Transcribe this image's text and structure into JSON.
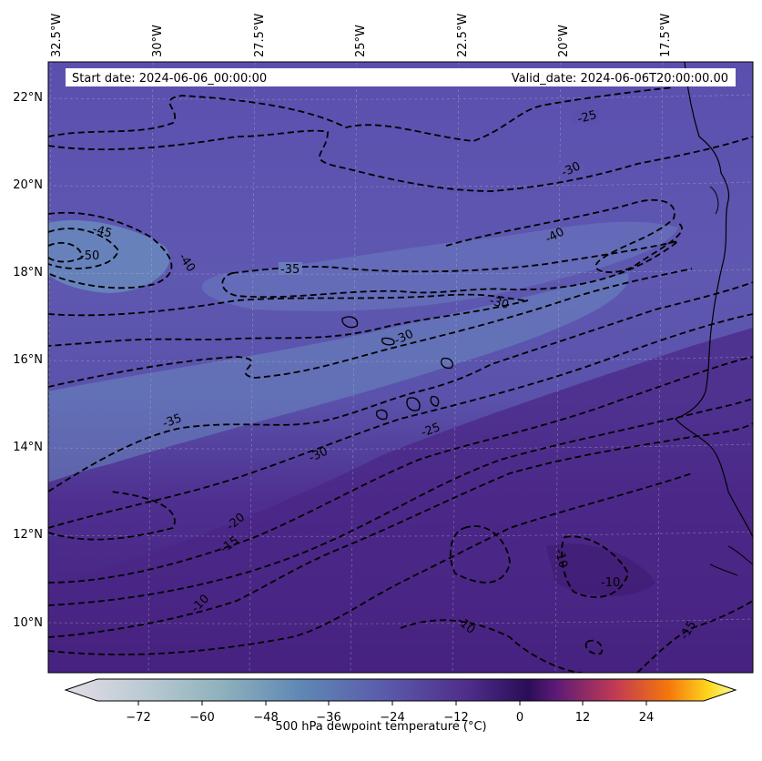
{
  "header": {
    "start_date": "Start date: 2024-06-06_00:00:00",
    "valid_date": "Valid_date: 2024-06-06T20:00:00.00"
  },
  "map": {
    "variable": "500 hPa dewpoint temperature",
    "lon_labels": [
      "32.5°W",
      "30°W",
      "27.5°W",
      "25°W",
      "22.5°W",
      "20°W",
      "17.5°W"
    ],
    "lat_labels": [
      "22°N",
      "20°N",
      "18°N",
      "16°N",
      "14°N",
      "12°N",
      "10°N"
    ],
    "contour_labels": [
      "-25",
      "-30",
      "-40",
      "-45",
      "-50",
      "-40",
      "-35",
      "-30",
      "-30",
      "-35",
      "-25",
      "-30",
      "-20",
      "-15",
      "-10",
      "-10",
      "-10",
      "-10",
      "-15"
    ],
    "contour_linestyle": "dashed",
    "contour_color": "#000000",
    "coastline_color": "#000000"
  },
  "colorbar": {
    "title": "500 hPa dewpoint temperature ($^\\circ$C)",
    "title_display": "500 hPa dewpoint temperature (°C)",
    "ticks": [
      "−72",
      "−60",
      "−48",
      "−36",
      "−24",
      "−12",
      "0",
      "12",
      "24"
    ],
    "range": [
      -84,
      36
    ],
    "extend": "both",
    "colormap_stops": [
      "#e4dde6",
      "#8fb2bc",
      "#5f88b5",
      "#5a59ab",
      "#4f2d8a",
      "#2a0d57",
      "#5a1a76",
      "#c13a55",
      "#f4770c",
      "#ffd61f",
      "#f8ff9c"
    ]
  }
}
